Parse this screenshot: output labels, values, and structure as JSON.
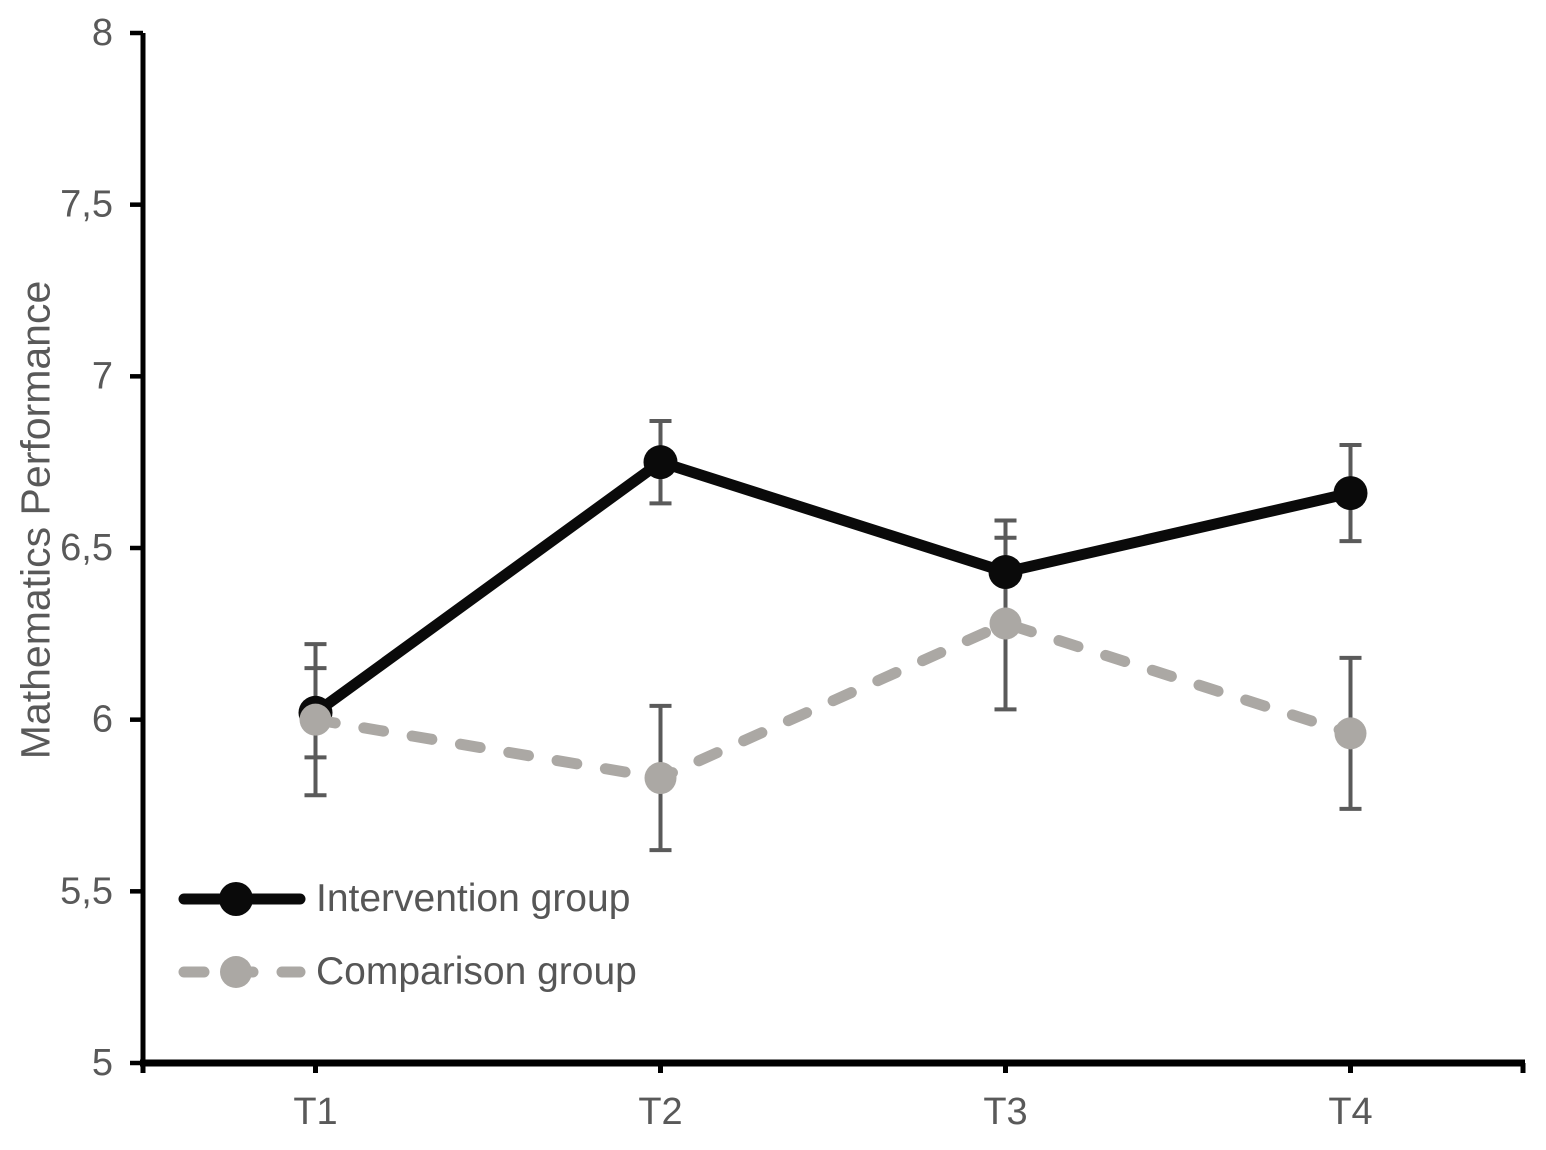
{
  "chart_data": {
    "type": "line",
    "title": "",
    "xlabel": "",
    "ylabel": "Mathematics Performance",
    "categories": [
      "T1",
      "T2",
      "T3",
      "T4"
    ],
    "series": [
      {
        "name": "Intervention group",
        "values": [
          6.02,
          6.75,
          6.43,
          6.66
        ],
        "errors": [
          0.13,
          0.12,
          0.15,
          0.14
        ],
        "color": "#0a0a0a",
        "line_style": "solid",
        "marker": "circle"
      },
      {
        "name": "Comparison group",
        "values": [
          6.0,
          5.83,
          6.28,
          5.96
        ],
        "errors": [
          0.22,
          0.21,
          0.25,
          0.22
        ],
        "color": "#aba8a4",
        "line_style": "dashed",
        "marker": "circle"
      }
    ],
    "ylim": [
      5,
      8
    ],
    "ytick_step": 0.5,
    "ytick_labels": [
      "5",
      "5,5",
      "6",
      "6,5",
      "7",
      "7,5",
      "8"
    ],
    "decimal_separator": ",",
    "grid": false,
    "legend_position": "inside-bottom-left",
    "error_bar_color": "#5a5a5a",
    "axis_color": "#000000",
    "text_color": "#595959"
  }
}
